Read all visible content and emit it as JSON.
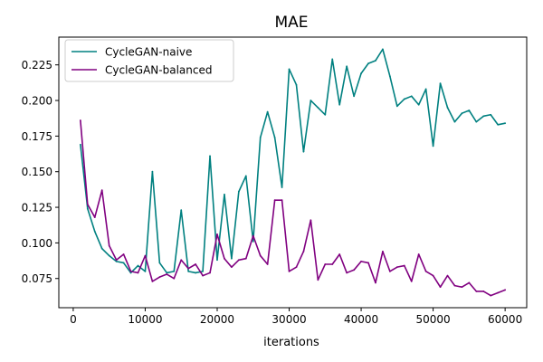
{
  "chart_data": {
    "type": "line",
    "title": "MAE",
    "xlabel": "iterations",
    "ylabel": "",
    "xlim": [
      -2000,
      63000
    ],
    "ylim": [
      0.0545,
      0.2445
    ],
    "xticks": [
      0,
      10000,
      20000,
      30000,
      40000,
      50000,
      60000
    ],
    "xtick_labels": [
      "0",
      "10000",
      "20000",
      "30000",
      "40000",
      "50000",
      "60000"
    ],
    "yticks": [
      0.075,
      0.1,
      0.125,
      0.15,
      0.175,
      0.2,
      0.225
    ],
    "ytick_labels": [
      "0.075",
      "0.100",
      "0.125",
      "0.150",
      "0.175",
      "0.200",
      "0.225"
    ],
    "grid": false,
    "legend_position": "top-left",
    "x": [
      1000,
      2000,
      3000,
      4000,
      5000,
      6000,
      7000,
      8000,
      9000,
      10000,
      11000,
      12000,
      13000,
      14000,
      15000,
      16000,
      17000,
      18000,
      19000,
      20000,
      21000,
      22000,
      23000,
      24000,
      25000,
      26000,
      27000,
      28000,
      29000,
      30000,
      31000,
      32000,
      33000,
      34000,
      35000,
      36000,
      37000,
      38000,
      39000,
      40000,
      41000,
      42000,
      43000,
      44000,
      45000,
      46000,
      47000,
      48000,
      49000,
      50000,
      51000,
      52000,
      53000,
      54000,
      55000,
      56000,
      57000,
      58000,
      59000,
      60000
    ],
    "series": [
      {
        "name": "CycleGAN-naive",
        "color": "#008080",
        "values": [
          0.169,
          0.124,
          0.108,
          0.096,
          0.091,
          0.087,
          0.086,
          0.079,
          0.084,
          0.08,
          0.15,
          0.086,
          0.079,
          0.08,
          0.123,
          0.08,
          0.079,
          0.08,
          0.161,
          0.088,
          0.134,
          0.089,
          0.136,
          0.147,
          0.101,
          0.174,
          0.192,
          0.174,
          0.139,
          0.222,
          0.211,
          0.164,
          0.2,
          0.195,
          0.19,
          0.229,
          0.197,
          0.224,
          0.203,
          0.219,
          0.226,
          0.228,
          0.236,
          0.217,
          0.196,
          0.201,
          0.203,
          0.197,
          0.208,
          0.168,
          0.212,
          0.195,
          0.185,
          0.191,
          0.193,
          0.185,
          0.189,
          0.19,
          0.183,
          0.184
        ]
      },
      {
        "name": "CycleGAN-balanced",
        "color": "#800080",
        "values": [
          0.186,
          0.127,
          0.118,
          0.137,
          0.098,
          0.088,
          0.092,
          0.08,
          0.079,
          0.091,
          0.073,
          0.076,
          0.078,
          0.075,
          0.088,
          0.082,
          0.085,
          0.077,
          0.079,
          0.106,
          0.089,
          0.083,
          0.088,
          0.089,
          0.105,
          0.091,
          0.085,
          0.13,
          0.13,
          0.08,
          0.083,
          0.094,
          0.116,
          0.074,
          0.085,
          0.085,
          0.092,
          0.079,
          0.081,
          0.087,
          0.086,
          0.072,
          0.094,
          0.08,
          0.083,
          0.084,
          0.073,
          0.092,
          0.08,
          0.077,
          0.069,
          0.077,
          0.07,
          0.069,
          0.072,
          0.066,
          0.066,
          0.063,
          0.065,
          0.067
        ]
      }
    ]
  }
}
